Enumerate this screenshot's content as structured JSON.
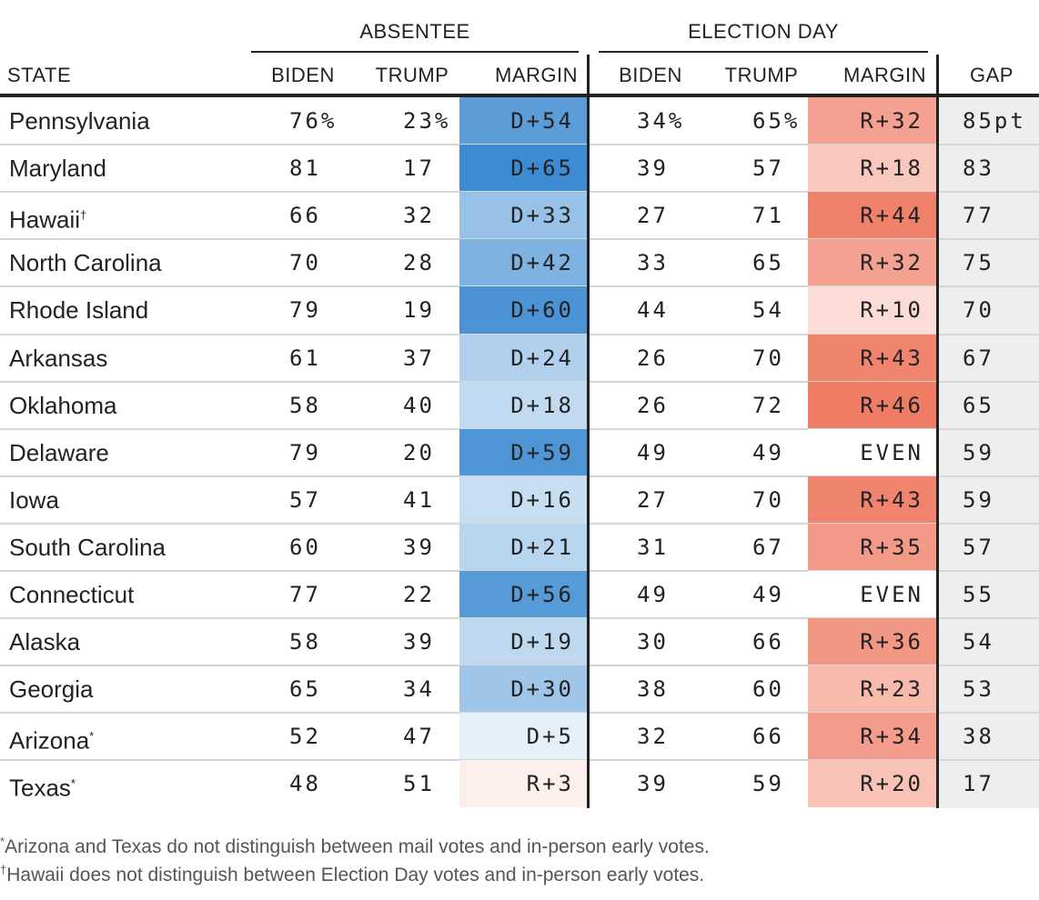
{
  "chart_data": {
    "type": "table",
    "group_headers": {
      "absentee": "ABSENTEE",
      "election_day": "ELECTION DAY"
    },
    "columns": {
      "state": "STATE",
      "abs_biden": "BIDEN",
      "abs_trump": "TRUMP",
      "abs_margin": "MARGIN",
      "ed_biden": "BIDEN",
      "ed_trump": "TRUMP",
      "ed_margin": "MARGIN",
      "gap": "GAP"
    },
    "rows": [
      {
        "state": "Pennsylvania",
        "mark": "",
        "abs_biden": "76%",
        "abs_trump": "23%",
        "abs_margin": "D+54",
        "abs_margin_value": 54,
        "ed_biden": "34%",
        "ed_trump": "65%",
        "ed_margin": "R+32",
        "ed_margin_value": -32,
        "gap": "85pt"
      },
      {
        "state": "Maryland",
        "mark": "",
        "abs_biden": "81",
        "abs_trump": "17",
        "abs_margin": "D+65",
        "abs_margin_value": 65,
        "ed_biden": "39",
        "ed_trump": "57",
        "ed_margin": "R+18",
        "ed_margin_value": -18,
        "gap": "83"
      },
      {
        "state": "Hawaii",
        "mark": "†",
        "abs_biden": "66",
        "abs_trump": "32",
        "abs_margin": "D+33",
        "abs_margin_value": 33,
        "ed_biden": "27",
        "ed_trump": "71",
        "ed_margin": "R+44",
        "ed_margin_value": -44,
        "gap": "77"
      },
      {
        "state": "North Carolina",
        "mark": "",
        "abs_biden": "70",
        "abs_trump": "28",
        "abs_margin": "D+42",
        "abs_margin_value": 42,
        "ed_biden": "33",
        "ed_trump": "65",
        "ed_margin": "R+32",
        "ed_margin_value": -32,
        "gap": "75"
      },
      {
        "state": "Rhode Island",
        "mark": "",
        "abs_biden": "79",
        "abs_trump": "19",
        "abs_margin": "D+60",
        "abs_margin_value": 60,
        "ed_biden": "44",
        "ed_trump": "54",
        "ed_margin": "R+10",
        "ed_margin_value": -10,
        "gap": "70"
      },
      {
        "state": "Arkansas",
        "mark": "",
        "abs_biden": "61",
        "abs_trump": "37",
        "abs_margin": "D+24",
        "abs_margin_value": 24,
        "ed_biden": "26",
        "ed_trump": "70",
        "ed_margin": "R+43",
        "ed_margin_value": -43,
        "gap": "67"
      },
      {
        "state": "Oklahoma",
        "mark": "",
        "abs_biden": "58",
        "abs_trump": "40",
        "abs_margin": "D+18",
        "abs_margin_value": 18,
        "ed_biden": "26",
        "ed_trump": "72",
        "ed_margin": "R+46",
        "ed_margin_value": -46,
        "gap": "65"
      },
      {
        "state": "Delaware",
        "mark": "",
        "abs_biden": "79",
        "abs_trump": "20",
        "abs_margin": "D+59",
        "abs_margin_value": 59,
        "ed_biden": "49",
        "ed_trump": "49",
        "ed_margin": "EVEN",
        "ed_margin_value": 0,
        "gap": "59"
      },
      {
        "state": "Iowa",
        "mark": "",
        "abs_biden": "57",
        "abs_trump": "41",
        "abs_margin": "D+16",
        "abs_margin_value": 16,
        "ed_biden": "27",
        "ed_trump": "70",
        "ed_margin": "R+43",
        "ed_margin_value": -43,
        "gap": "59"
      },
      {
        "state": "South Carolina",
        "mark": "",
        "abs_biden": "60",
        "abs_trump": "39",
        "abs_margin": "D+21",
        "abs_margin_value": 21,
        "ed_biden": "31",
        "ed_trump": "67",
        "ed_margin": "R+35",
        "ed_margin_value": -35,
        "gap": "57"
      },
      {
        "state": "Connecticut",
        "mark": "",
        "abs_biden": "77",
        "abs_trump": "22",
        "abs_margin": "D+56",
        "abs_margin_value": 56,
        "ed_biden": "49",
        "ed_trump": "49",
        "ed_margin": "EVEN",
        "ed_margin_value": 0,
        "gap": "55"
      },
      {
        "state": "Alaska",
        "mark": "",
        "abs_biden": "58",
        "abs_trump": "39",
        "abs_margin": "D+19",
        "abs_margin_value": 19,
        "ed_biden": "30",
        "ed_trump": "66",
        "ed_margin": "R+36",
        "ed_margin_value": -36,
        "gap": "54"
      },
      {
        "state": "Georgia",
        "mark": "",
        "abs_biden": "65",
        "abs_trump": "34",
        "abs_margin": "D+30",
        "abs_margin_value": 30,
        "ed_biden": "38",
        "ed_trump": "60",
        "ed_margin": "R+23",
        "ed_margin_value": -23,
        "gap": "53"
      },
      {
        "state": "Arizona",
        "mark": "*",
        "abs_biden": "52",
        "abs_trump": "47",
        "abs_margin": "D+5",
        "abs_margin_value": 5,
        "ed_biden": "32",
        "ed_trump": "66",
        "ed_margin": "R+34",
        "ed_margin_value": -34,
        "gap": "38"
      },
      {
        "state": "Texas",
        "mark": "*",
        "abs_biden": "48",
        "abs_trump": "51",
        "abs_margin": "R+3",
        "abs_margin_value": -3,
        "ed_biden": "39",
        "ed_trump": "59",
        "ed_margin": "R+20",
        "ed_margin_value": -20,
        "gap": "17"
      }
    ],
    "colors": {
      "dem": "#3d8bd2",
      "rep": "#ef7c65",
      "gap_bg": "#eeeeee"
    }
  },
  "footnotes": [
    {
      "mark": "*",
      "text": "Arizona and Texas do not distinguish between mail votes and in-person early votes."
    },
    {
      "mark": "†",
      "text": "Hawaii does not distinguish between Election Day votes and in-person early votes."
    }
  ]
}
